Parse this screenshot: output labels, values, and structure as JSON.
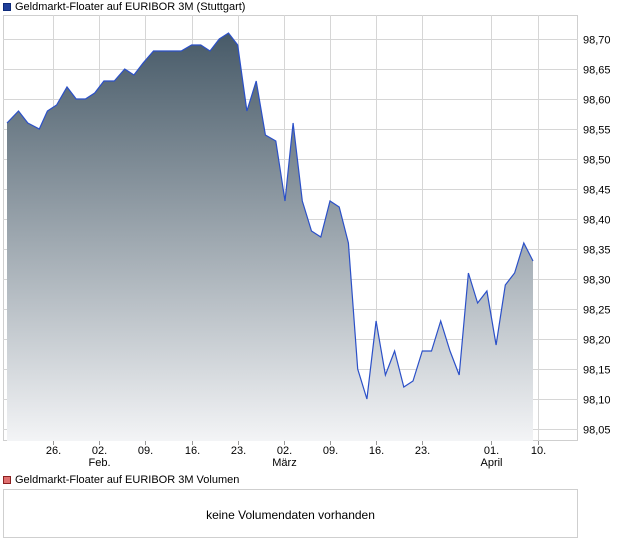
{
  "legend": {
    "price_label": "Geldmarkt-Floater auf EURIBOR 3M (Stuttgart)",
    "volume_label": "Geldmarkt-Floater auf EURIBOR 3M Volumen"
  },
  "volume": {
    "message": "keine Volumendaten vorhanden"
  },
  "colors": {
    "line": "#2b50c8",
    "area_top": "#475a68",
    "area_bottom": "#f3f4f6",
    "grid": "#d6d6d6",
    "frame": "#cfcfcf"
  },
  "chart_data": {
    "type": "area",
    "ylim": [
      98.03,
      98.74
    ],
    "y_ticks": [
      "98,05",
      "98,10",
      "98,15",
      "98,20",
      "98,25",
      "98,30",
      "98,35",
      "98,40",
      "98,45",
      "98,50",
      "98,55",
      "98,60",
      "98,65",
      "98,70"
    ],
    "x_ticks": [
      {
        "x": 4,
        "label": "26."
      },
      {
        "x": 8,
        "label": "02.",
        "sublabel": "Feb."
      },
      {
        "x": 12,
        "label": "09."
      },
      {
        "x": 16,
        "label": "16."
      },
      {
        "x": 20,
        "label": "23."
      },
      {
        "x": 24,
        "label": "02.",
        "sublabel": "März"
      },
      {
        "x": 28,
        "label": "09."
      },
      {
        "x": 32,
        "label": "16."
      },
      {
        "x": 36,
        "label": "23."
      },
      {
        "x": 42,
        "label": "01.",
        "sublabel": "April"
      },
      {
        "x": 46,
        "label": "10."
      }
    ],
    "xlim": [
      0,
      49.5
    ],
    "grid": true,
    "series": [
      {
        "values": [
          98.56,
          98.58,
          98.56,
          98.55,
          98.58,
          98.59,
          98.62,
          98.6,
          98.6,
          98.61,
          98.63,
          98.63,
          98.65,
          98.64,
          98.66,
          98.68,
          98.68,
          98.68,
          98.68,
          98.69,
          98.69,
          98.68,
          98.7,
          98.71,
          98.69,
          98.58,
          98.63,
          98.54,
          98.53,
          98.43,
          98.56,
          98.43,
          98.38,
          98.37,
          98.43,
          98.42,
          98.36,
          98.15,
          98.1,
          98.23,
          98.14,
          98.18,
          98.12,
          98.13,
          98.18,
          98.18,
          98.23,
          98.18,
          98.14,
          98.31,
          98.26,
          98.28,
          98.19,
          98.29,
          98.31,
          98.36,
          98.33
        ],
        "x": [
          0,
          1,
          1.8,
          2.8,
          3.5,
          4.3,
          5.2,
          6.0,
          6.8,
          7.6,
          8.4,
          9.3,
          10.2,
          11.0,
          11.8,
          12.7,
          13.5,
          14.3,
          15.1,
          16.0,
          16.8,
          17.6,
          18.4,
          19.2,
          20.0,
          20.8,
          21.6,
          22.4,
          23.3,
          24.1,
          24.8,
          25.6,
          26.4,
          27.2,
          28.0,
          28.8,
          29.6,
          30.4,
          31.2,
          32.0,
          32.8,
          33.6,
          34.4,
          35.2,
          36.0,
          36.8,
          37.6,
          38.4,
          39.2,
          40.0,
          40.8,
          41.6,
          42.4,
          43.2,
          44.0,
          44.8,
          45.6
        ]
      }
    ]
  }
}
